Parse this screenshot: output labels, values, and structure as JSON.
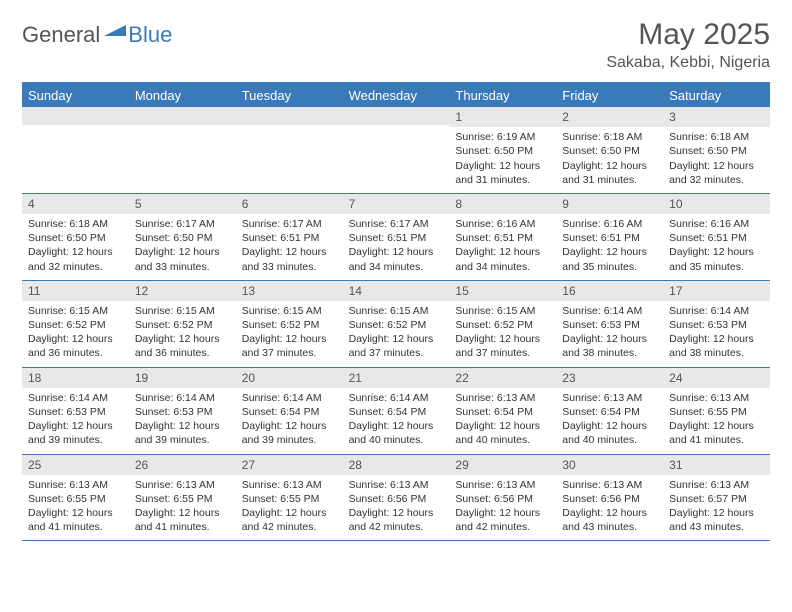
{
  "brand": {
    "part1": "General",
    "part2": "Blue"
  },
  "title": "May 2025",
  "location": "Sakaba, Kebbi, Nigeria",
  "colors": {
    "header_bg": "#3a7ab8",
    "daynum_bg": "#e8e8e8",
    "text": "#333333",
    "muted": "#555555",
    "background": "#ffffff"
  },
  "font": {
    "family": "Arial",
    "title_size": 30,
    "location_size": 16,
    "header_size": 13,
    "body_size": 10.5
  },
  "day_names": [
    "Sunday",
    "Monday",
    "Tuesday",
    "Wednesday",
    "Thursday",
    "Friday",
    "Saturday"
  ],
  "weeks": [
    [
      {
        "n": "",
        "sr": "",
        "ss": "",
        "dl": ""
      },
      {
        "n": "",
        "sr": "",
        "ss": "",
        "dl": ""
      },
      {
        "n": "",
        "sr": "",
        "ss": "",
        "dl": ""
      },
      {
        "n": "",
        "sr": "",
        "ss": "",
        "dl": ""
      },
      {
        "n": "1",
        "sr": "Sunrise: 6:19 AM",
        "ss": "Sunset: 6:50 PM",
        "dl": "Daylight: 12 hours and 31 minutes."
      },
      {
        "n": "2",
        "sr": "Sunrise: 6:18 AM",
        "ss": "Sunset: 6:50 PM",
        "dl": "Daylight: 12 hours and 31 minutes."
      },
      {
        "n": "3",
        "sr": "Sunrise: 6:18 AM",
        "ss": "Sunset: 6:50 PM",
        "dl": "Daylight: 12 hours and 32 minutes."
      }
    ],
    [
      {
        "n": "4",
        "sr": "Sunrise: 6:18 AM",
        "ss": "Sunset: 6:50 PM",
        "dl": "Daylight: 12 hours and 32 minutes."
      },
      {
        "n": "5",
        "sr": "Sunrise: 6:17 AM",
        "ss": "Sunset: 6:50 PM",
        "dl": "Daylight: 12 hours and 33 minutes."
      },
      {
        "n": "6",
        "sr": "Sunrise: 6:17 AM",
        "ss": "Sunset: 6:51 PM",
        "dl": "Daylight: 12 hours and 33 minutes."
      },
      {
        "n": "7",
        "sr": "Sunrise: 6:17 AM",
        "ss": "Sunset: 6:51 PM",
        "dl": "Daylight: 12 hours and 34 minutes."
      },
      {
        "n": "8",
        "sr": "Sunrise: 6:16 AM",
        "ss": "Sunset: 6:51 PM",
        "dl": "Daylight: 12 hours and 34 minutes."
      },
      {
        "n": "9",
        "sr": "Sunrise: 6:16 AM",
        "ss": "Sunset: 6:51 PM",
        "dl": "Daylight: 12 hours and 35 minutes."
      },
      {
        "n": "10",
        "sr": "Sunrise: 6:16 AM",
        "ss": "Sunset: 6:51 PM",
        "dl": "Daylight: 12 hours and 35 minutes."
      }
    ],
    [
      {
        "n": "11",
        "sr": "Sunrise: 6:15 AM",
        "ss": "Sunset: 6:52 PM",
        "dl": "Daylight: 12 hours and 36 minutes."
      },
      {
        "n": "12",
        "sr": "Sunrise: 6:15 AM",
        "ss": "Sunset: 6:52 PM",
        "dl": "Daylight: 12 hours and 36 minutes."
      },
      {
        "n": "13",
        "sr": "Sunrise: 6:15 AM",
        "ss": "Sunset: 6:52 PM",
        "dl": "Daylight: 12 hours and 37 minutes."
      },
      {
        "n": "14",
        "sr": "Sunrise: 6:15 AM",
        "ss": "Sunset: 6:52 PM",
        "dl": "Daylight: 12 hours and 37 minutes."
      },
      {
        "n": "15",
        "sr": "Sunrise: 6:15 AM",
        "ss": "Sunset: 6:52 PM",
        "dl": "Daylight: 12 hours and 37 minutes."
      },
      {
        "n": "16",
        "sr": "Sunrise: 6:14 AM",
        "ss": "Sunset: 6:53 PM",
        "dl": "Daylight: 12 hours and 38 minutes."
      },
      {
        "n": "17",
        "sr": "Sunrise: 6:14 AM",
        "ss": "Sunset: 6:53 PM",
        "dl": "Daylight: 12 hours and 38 minutes."
      }
    ],
    [
      {
        "n": "18",
        "sr": "Sunrise: 6:14 AM",
        "ss": "Sunset: 6:53 PM",
        "dl": "Daylight: 12 hours and 39 minutes."
      },
      {
        "n": "19",
        "sr": "Sunrise: 6:14 AM",
        "ss": "Sunset: 6:53 PM",
        "dl": "Daylight: 12 hours and 39 minutes."
      },
      {
        "n": "20",
        "sr": "Sunrise: 6:14 AM",
        "ss": "Sunset: 6:54 PM",
        "dl": "Daylight: 12 hours and 39 minutes."
      },
      {
        "n": "21",
        "sr": "Sunrise: 6:14 AM",
        "ss": "Sunset: 6:54 PM",
        "dl": "Daylight: 12 hours and 40 minutes."
      },
      {
        "n": "22",
        "sr": "Sunrise: 6:13 AM",
        "ss": "Sunset: 6:54 PM",
        "dl": "Daylight: 12 hours and 40 minutes."
      },
      {
        "n": "23",
        "sr": "Sunrise: 6:13 AM",
        "ss": "Sunset: 6:54 PM",
        "dl": "Daylight: 12 hours and 40 minutes."
      },
      {
        "n": "24",
        "sr": "Sunrise: 6:13 AM",
        "ss": "Sunset: 6:55 PM",
        "dl": "Daylight: 12 hours and 41 minutes."
      }
    ],
    [
      {
        "n": "25",
        "sr": "Sunrise: 6:13 AM",
        "ss": "Sunset: 6:55 PM",
        "dl": "Daylight: 12 hours and 41 minutes."
      },
      {
        "n": "26",
        "sr": "Sunrise: 6:13 AM",
        "ss": "Sunset: 6:55 PM",
        "dl": "Daylight: 12 hours and 41 minutes."
      },
      {
        "n": "27",
        "sr": "Sunrise: 6:13 AM",
        "ss": "Sunset: 6:55 PM",
        "dl": "Daylight: 12 hours and 42 minutes."
      },
      {
        "n": "28",
        "sr": "Sunrise: 6:13 AM",
        "ss": "Sunset: 6:56 PM",
        "dl": "Daylight: 12 hours and 42 minutes."
      },
      {
        "n": "29",
        "sr": "Sunrise: 6:13 AM",
        "ss": "Sunset: 6:56 PM",
        "dl": "Daylight: 12 hours and 42 minutes."
      },
      {
        "n": "30",
        "sr": "Sunrise: 6:13 AM",
        "ss": "Sunset: 6:56 PM",
        "dl": "Daylight: 12 hours and 43 minutes."
      },
      {
        "n": "31",
        "sr": "Sunrise: 6:13 AM",
        "ss": "Sunset: 6:57 PM",
        "dl": "Daylight: 12 hours and 43 minutes."
      }
    ]
  ]
}
